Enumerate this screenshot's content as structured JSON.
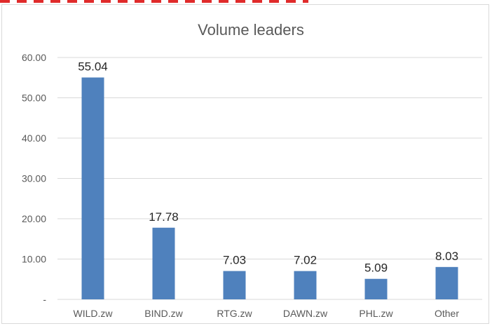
{
  "chart_data": {
    "type": "bar",
    "title": "Volume leaders",
    "categories": [
      "WILD.zw",
      "BIND.zw",
      "RTG.zw",
      "DAWN.zw",
      "PHL.zw",
      "Other"
    ],
    "values": [
      55.04,
      17.78,
      7.03,
      7.02,
      5.09,
      8.03
    ],
    "data_labels": [
      "55.04",
      "17.78",
      "7.03",
      "7.02",
      "5.09",
      "8.03"
    ],
    "yticks": [
      "-",
      "10.00",
      "20.00",
      "30.00",
      "40.00",
      "50.00",
      "60.00"
    ],
    "ylim": [
      0,
      60
    ],
    "grid": true,
    "legend": "none",
    "bar_color": "#4f81bd",
    "grid_color": "#d9d9d9"
  }
}
